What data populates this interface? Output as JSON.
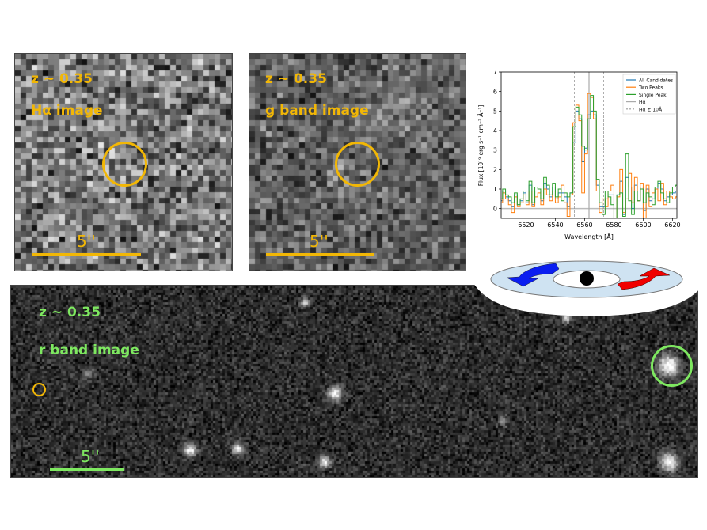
{
  "panels": {
    "halpha": {
      "redshift": "z ~ 0.35",
      "title": "Hα image",
      "scale_label": "5''"
    },
    "gband": {
      "redshift": "z ~ 0.35",
      "title": "g band image",
      "scale_label": "5''"
    },
    "rband": {
      "redshift": "z ~ 0.35",
      "title": "r band image",
      "scale_label": "5''"
    }
  },
  "colors": {
    "halpha_label": "#f2b705",
    "rband_label": "#7ee860",
    "disk": "#cfe3f2",
    "approaching_arrow": "#0a1ef0",
    "receding_arrow": "#f00000"
  },
  "diagram": {
    "type": "rotating disk",
    "icons": [
      "blue-arrow-icon",
      "red-arrow-icon",
      "black-hole-icon"
    ]
  },
  "chart_data": {
    "type": "line",
    "style": "step",
    "xlabel": "Wavelength [Å]",
    "ylabel": "Flux [10$^{19}$ erg s$^{-1}$ cm$^{-2}$ Å$^{-1}$]",
    "ylabel_display": "Flux [10¹⁹ erg s⁻¹ cm⁻² Å⁻¹]",
    "xlim": [
      6503,
      6623
    ],
    "ylim": [
      -0.5,
      7
    ],
    "xticks": [
      6520,
      6540,
      6560,
      6580,
      6600,
      6620
    ],
    "yticks": [
      0,
      1,
      2,
      3,
      4,
      5,
      6,
      7
    ],
    "legend_position": "top-right",
    "x": [
      6503,
      6505,
      6507,
      6509,
      6511,
      6513,
      6515,
      6517,
      6519,
      6521,
      6523,
      6525,
      6527,
      6529,
      6531,
      6533,
      6535,
      6537,
      6539,
      6541,
      6543,
      6545,
      6547,
      6549,
      6551,
      6553,
      6555,
      6557,
      6559,
      6561,
      6563,
      6565,
      6567,
      6569,
      6571,
      6573,
      6575,
      6577,
      6579,
      6581,
      6583,
      6585,
      6587,
      6589,
      6591,
      6593,
      6595,
      6597,
      6599,
      6601,
      6603,
      6605,
      6607,
      6609,
      6611,
      6613,
      6615,
      6617,
      6619,
      6621,
      6623
    ],
    "series": [
      {
        "name": "All Candidates",
        "color": "#1f77b4",
        "values": [
          0.4,
          0.9,
          0.6,
          0.4,
          0.1,
          0.7,
          0.2,
          0.4,
          0.8,
          0.3,
          1.2,
          0.2,
          0.9,
          0.9,
          0.4,
          1.3,
          1.0,
          0.6,
          1.1,
          0.5,
          0.8,
          0.8,
          0.6,
          0.1,
          0.8,
          3.4,
          5.0,
          4.6,
          2.4,
          3.1,
          4.8,
          5.0,
          4.8,
          1.2,
          0.1,
          0.1,
          0.5,
          0.7,
          0.7,
          -0.5,
          0.7,
          1.4,
          -0.3,
          1.6,
          1.1,
          0.0,
          1.2,
          0.4,
          1.1,
          -0.1,
          1.0,
          0.4,
          0.5,
          1.0,
          1.3,
          1.0,
          0.4,
          0.6,
          0.7,
          0.8,
          0.9
        ]
      },
      {
        "name": "Two Peaks",
        "color": "#ff7f0e",
        "values": [
          0.3,
          0.8,
          0.5,
          0.2,
          -0.2,
          0.6,
          0.1,
          0.3,
          0.7,
          0.2,
          0.9,
          0.1,
          0.6,
          0.8,
          0.2,
          1.0,
          0.7,
          0.4,
          0.9,
          0.3,
          0.6,
          1.2,
          0.3,
          -0.4,
          0.7,
          4.4,
          5.3,
          4.5,
          0.8,
          2.8,
          5.9,
          5.7,
          4.6,
          0.9,
          -0.2,
          0.5,
          0.1,
          0.9,
          1.2,
          -0.6,
          0.6,
          2.0,
          -0.2,
          0.5,
          1.8,
          0.3,
          1.6,
          0.4,
          1.3,
          -0.5,
          1.2,
          0.1,
          0.8,
          1.0,
          0.4,
          1.3,
          0.2,
          0.9,
          0.6,
          0.5,
          0.6
        ]
      },
      {
        "name": "Single Peak",
        "color": "#2ca02c",
        "values": [
          0.5,
          1.0,
          0.7,
          0.6,
          0.3,
          0.8,
          0.2,
          0.5,
          0.9,
          0.4,
          1.4,
          0.3,
          1.1,
          1.0,
          0.5,
          1.6,
          1.2,
          0.7,
          1.3,
          0.6,
          1.0,
          0.4,
          0.8,
          0.6,
          0.8,
          4.2,
          5.2,
          4.8,
          3.2,
          3.0,
          4.6,
          5.8,
          5.0,
          1.5,
          0.3,
          -0.3,
          0.9,
          0.6,
          0.2,
          -0.5,
          0.7,
          0.8,
          -0.4,
          2.8,
          0.4,
          -0.3,
          0.9,
          0.4,
          1.0,
          0.3,
          0.8,
          0.6,
          0.2,
          1.1,
          1.4,
          0.8,
          0.5,
          0.3,
          0.8,
          1.1,
          1.2
        ]
      }
    ],
    "reference_lines": [
      {
        "name": "Hα",
        "x": 6563,
        "style": "solid",
        "color": "#aaaaaa"
      },
      {
        "name": "Hα ± 10Å",
        "x": [
          6553,
          6573
        ],
        "style": "dashed",
        "color": "#999999"
      }
    ]
  }
}
